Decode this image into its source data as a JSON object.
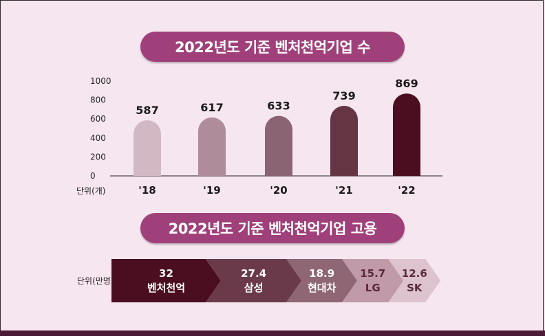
{
  "chart_data": [
    {
      "type": "bar",
      "title": "2022년도 기준 벤처천억기업 수",
      "categories": [
        "'18",
        "'19",
        "'20",
        "'21",
        "'22"
      ],
      "values": [
        587,
        617,
        633,
        739,
        869
      ],
      "ylim": [
        0,
        1000
      ],
      "yticks": [
        "0",
        "200",
        "400",
        "600",
        "800",
        "1000"
      ],
      "unit_label": "단위(개)",
      "colors": [
        "#d2b8c3",
        "#ae8c99",
        "#8a6472",
        "#653544",
        "#4a0e20"
      ]
    },
    {
      "type": "bar",
      "title": "2022년도 기준 벤처천억기업 고용",
      "unit_label": "단위(만명)",
      "categories": [
        "벤처천억",
        "삼성",
        "현대차",
        "LG",
        "SK"
      ],
      "values": [
        32,
        27.4,
        18.9,
        15.7,
        12.6
      ],
      "value_labels": [
        "32",
        "27.4",
        "18.9",
        "15.7",
        "12.6"
      ],
      "colors": [
        "#4a0e20",
        "#6b3a4a",
        "#8f6674",
        "#c19aaa",
        "#dcc3cd"
      ],
      "text_colors": [
        "#ffffff",
        "#ffffff",
        "#ffffff",
        "#5a2a3a",
        "#5a2a3a"
      ]
    }
  ]
}
